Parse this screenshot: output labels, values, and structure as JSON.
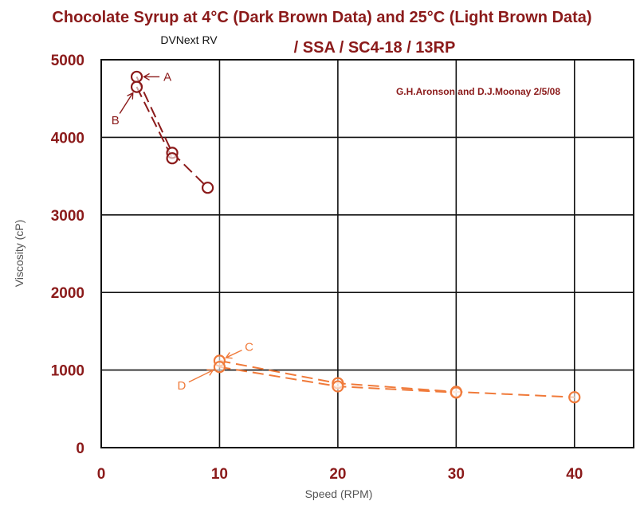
{
  "chart_data": {
    "type": "scatter",
    "title_line1": "Chocolate Syrup at 4°C (Dark Brown Data) and 25°C (Light Brown Data)",
    "title_line2": "/ SSA / SC4-18 / 13RP",
    "subtitle": "DVNext RV",
    "author_note": "G.H.Aronson and D.J.Moonay 2/5/08",
    "xlabel": "Speed (RPM)",
    "ylabel": "Viscosity (cP)",
    "xlim": [
      0,
      45
    ],
    "ylim": [
      0,
      5000
    ],
    "x_ticks": [
      0,
      10,
      20,
      30,
      40
    ],
    "x_tick_labels": [
      "0",
      "10",
      "20",
      "30",
      "40"
    ],
    "y_ticks": [
      0,
      1000,
      2000,
      3000,
      4000,
      5000
    ],
    "y_tick_labels": [
      "0",
      "1000",
      "2000",
      "3000",
      "4000",
      "5000"
    ],
    "grid": true,
    "series": [
      {
        "color": "#8b1a1a",
        "lines": [
          [
            [
              3,
              4780
            ],
            [
              6,
              3800
            ],
            [
              9,
              3350
            ]
          ],
          [
            [
              3,
              4650
            ],
            [
              6,
              3730
            ]
          ]
        ],
        "points": [
          [
            3,
            4780
          ],
          [
            3,
            4650
          ],
          [
            6,
            3800
          ],
          [
            6,
            3730
          ],
          [
            9,
            3350
          ]
        ]
      },
      {
        "color": "#f07a3a",
        "lines": [
          [
            [
              10,
              1120
            ],
            [
              20,
              830
            ],
            [
              30,
              720
            ],
            [
              40,
              650
            ]
          ],
          [
            [
              10,
              1040
            ],
            [
              20,
              790
            ],
            [
              30,
              710
            ]
          ]
        ],
        "points": [
          [
            10,
            1120
          ],
          [
            10,
            1040
          ],
          [
            20,
            830
          ],
          [
            20,
            790
          ],
          [
            30,
            720
          ],
          [
            30,
            710
          ],
          [
            40,
            650
          ]
        ]
      }
    ],
    "annotations": [
      {
        "text": "A",
        "color": "#8b1a1a",
        "point": [
          3,
          4780
        ],
        "label_at": [
          5.6,
          4780
        ]
      },
      {
        "text": "B",
        "color": "#8b1a1a",
        "point": [
          3,
          4650
        ],
        "label_at": [
          1.2,
          4220
        ]
      },
      {
        "text": "C",
        "color": "#f07a3a",
        "point": [
          10,
          1120
        ],
        "label_at": [
          12.5,
          1300
        ]
      },
      {
        "text": "D",
        "color": "#f07a3a",
        "point": [
          10,
          1040
        ],
        "label_at": [
          6.8,
          800
        ]
      }
    ]
  }
}
